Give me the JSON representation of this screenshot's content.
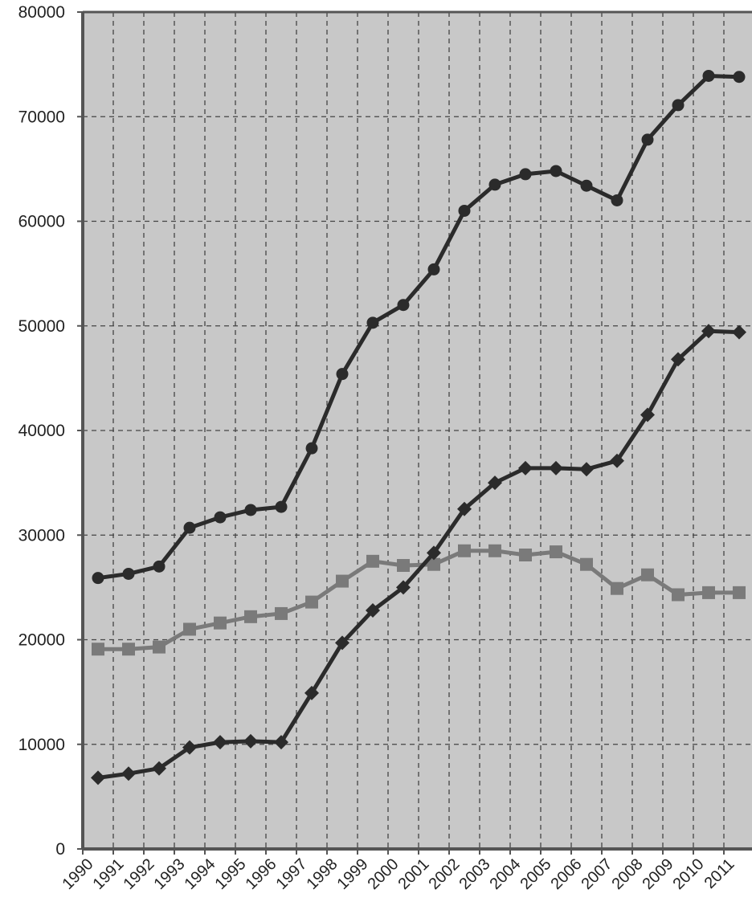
{
  "chart_data": {
    "type": "line",
    "title": "",
    "xlabel": "",
    "ylabel": "",
    "ylim": [
      0,
      80000
    ],
    "y_ticks": [
      "0",
      "10000",
      "20000",
      "30000",
      "40000",
      "50000",
      "60000",
      "70000",
      "80000"
    ],
    "categories": [
      "1990",
      "1991",
      "1992",
      "1993",
      "1994",
      "1995",
      "1996",
      "1997",
      "1998",
      "1999",
      "2000",
      "2001",
      "2002",
      "2003",
      "2004",
      "2005",
      "2006",
      "2007",
      "2008",
      "2009",
      "2010",
      "2011"
    ],
    "grid": true,
    "legend": "none",
    "series": [
      {
        "marker": "circle",
        "color": "#2b2b2b",
        "values": [
          25900,
          26300,
          27000,
          30700,
          31700,
          32400,
          32700,
          38300,
          45400,
          50300,
          52000,
          55400,
          61000,
          63500,
          64500,
          64800,
          63400,
          62000,
          67800,
          71100,
          73900,
          73800
        ]
      },
      {
        "marker": "square",
        "color": "#7a7a7a",
        "values": [
          19100,
          19100,
          19300,
          21000,
          21600,
          22200,
          22500,
          23600,
          25600,
          27500,
          27100,
          27200,
          28500,
          28500,
          28100,
          28400,
          27200,
          24900,
          26200,
          24300,
          24500,
          24500
        ]
      },
      {
        "marker": "diamond",
        "color": "#2b2b2b",
        "values": [
          6800,
          7200,
          7700,
          9700,
          10200,
          10300,
          10200,
          14900,
          19700,
          22800,
          25000,
          28300,
          32500,
          35000,
          36400,
          36400,
          36300,
          37100,
          41500,
          46800,
          49500,
          49400
        ]
      }
    ]
  },
  "colors": {
    "plot_background": "#c8c8c8",
    "axis": "#555555",
    "grid": "#444444"
  }
}
